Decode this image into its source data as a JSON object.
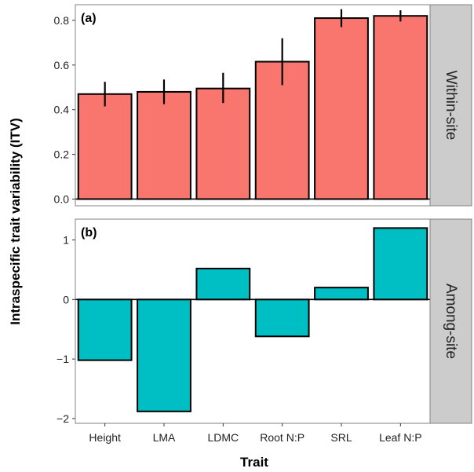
{
  "chart_data": {
    "type": "bar",
    "ylabel": "Intraspecific trait variability (ITV)",
    "xlabel": "Trait",
    "categories": [
      "Height",
      "LMA",
      "LDMC",
      "Root N:P",
      "SRL",
      "Leaf N:P"
    ],
    "panels": [
      {
        "tag": "(a)",
        "strip": "Within-site",
        "color": "#F8766D",
        "ylim": [
          -0.03,
          0.87
        ],
        "yticks": [
          "0.0",
          "0.2",
          "0.4",
          "0.6",
          "0.8"
        ],
        "values": [
          0.47,
          0.48,
          0.495,
          0.615,
          0.81,
          0.82
        ],
        "err_low": [
          0.415,
          0.425,
          0.43,
          0.51,
          0.77,
          0.795
        ],
        "err_high": [
          0.525,
          0.535,
          0.565,
          0.72,
          0.85,
          0.845
        ]
      },
      {
        "tag": "(b)",
        "strip": "Among-site",
        "color": "#00BFC4",
        "ylim": [
          -2.08,
          1.35
        ],
        "yticks": [
          "1",
          "0",
          "−1",
          "−2"
        ],
        "yticks_values": [
          1,
          0,
          -1,
          -2
        ],
        "values": [
          -1.02,
          -1.88,
          0.52,
          -0.62,
          0.2,
          1.2
        ]
      }
    ],
    "grid": false,
    "legend": "none",
    "colors": {
      "strip_bg": "#CCCCCC",
      "panel_border": "#808080",
      "bar_outline": "#000000"
    }
  }
}
